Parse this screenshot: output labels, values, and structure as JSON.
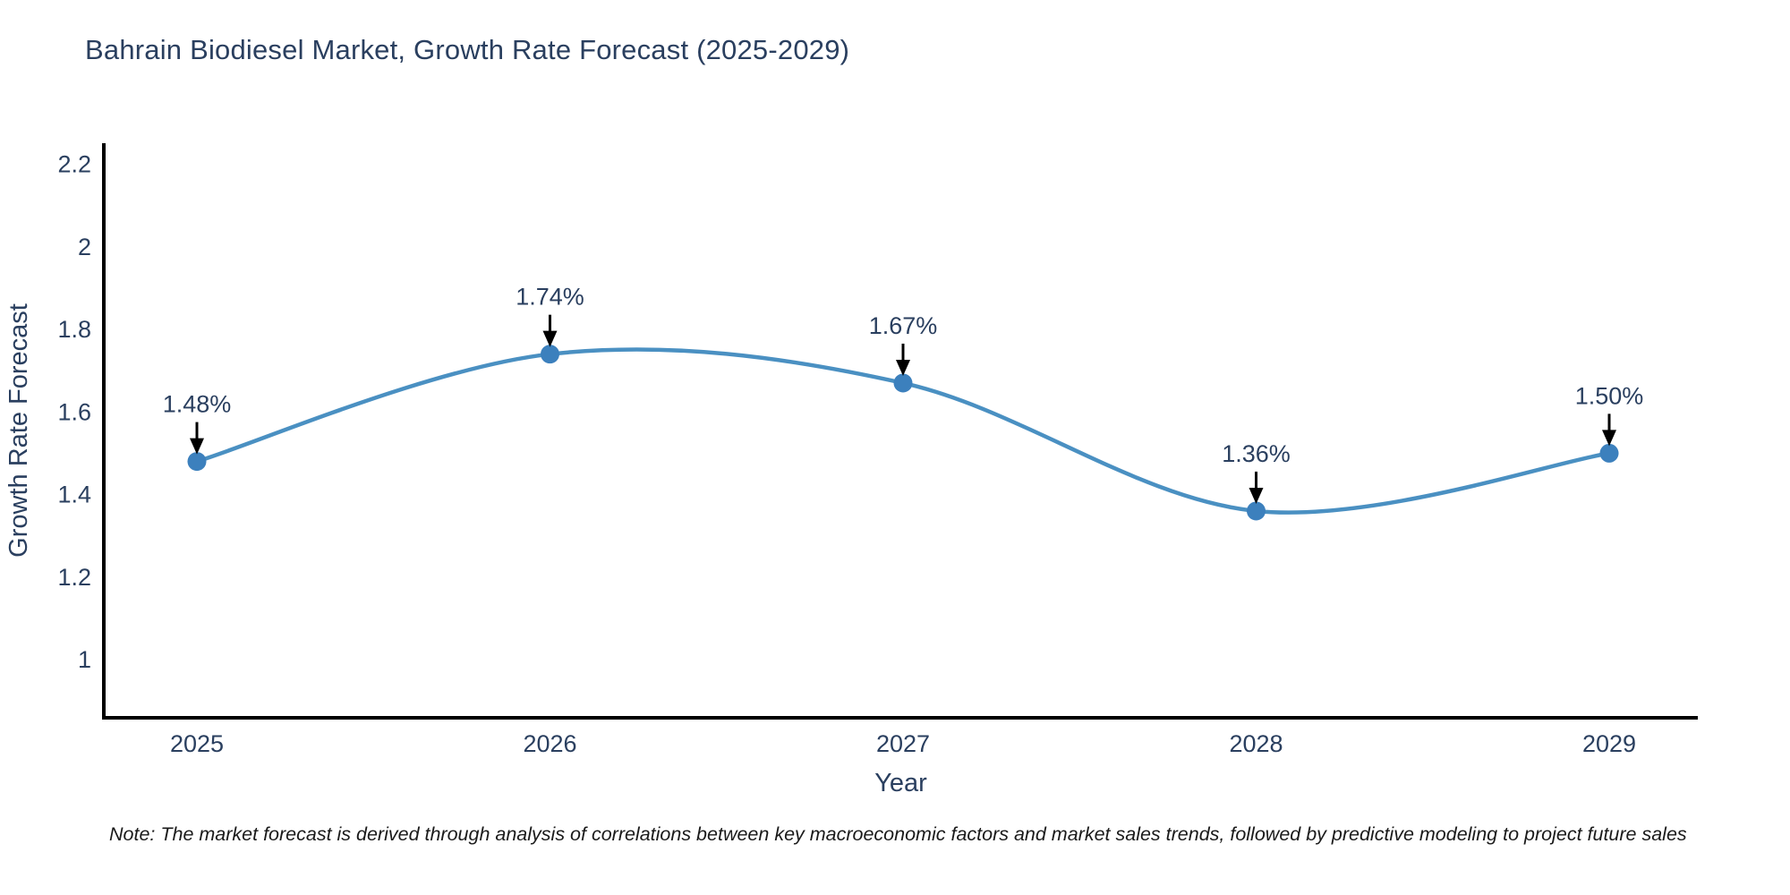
{
  "title": "Bahrain Biodiesel Market, Growth Rate Forecast (2025-2029)",
  "note": "Note: The market forecast is derived through analysis of correlations between key macroeconomic factors and market sales trends, followed by predictive modeling to project future sales",
  "chart_data": {
    "type": "line",
    "title": "Bahrain Biodiesel Market, Growth Rate Forecast (2025-2029)",
    "xlabel": "Year",
    "ylabel": "Growth Rate Forecast",
    "categories": [
      "2025",
      "2026",
      "2027",
      "2028",
      "2029"
    ],
    "series": [
      {
        "name": "Growth Rate Forecast",
        "values": [
          1.48,
          1.74,
          1.67,
          1.36,
          1.5
        ],
        "point_labels": [
          "1.48%",
          "1.74%",
          "1.67%",
          "1.36%",
          "1.50%"
        ]
      }
    ],
    "yticks": [
      1,
      1.2,
      1.4,
      1.6,
      1.8,
      2,
      2.2
    ],
    "ylim": [
      0.86,
      2.25
    ],
    "line_shape": "spline",
    "grid": false,
    "legend": "none",
    "annotations": "value labels with down arrows above each point",
    "colors": {
      "line": "#4a90c2",
      "marker": "#3c80bd",
      "axis_line": "#000000",
      "tick_text": "#2a3f5f",
      "axis_title_text": "#2a3f5f",
      "annotation_text": "#2a3f5f",
      "annotation_arrow": "#000000",
      "background": "#ffffff"
    }
  }
}
